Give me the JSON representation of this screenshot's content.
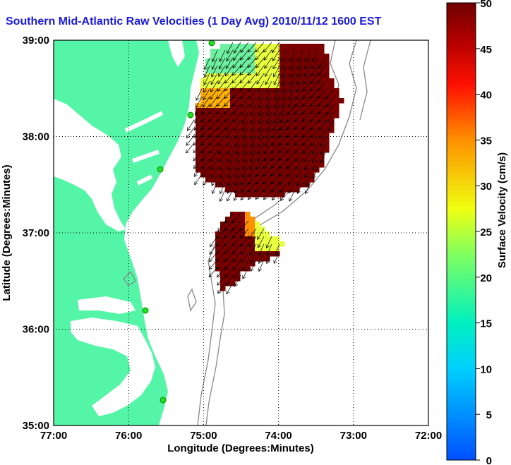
{
  "title": "Southern Mid-Atlantic Raw Velocities (1 Day Avg) 2010/11/12 1600 EST",
  "axes": {
    "xlabel": "Longitude (Degrees:Minutes)",
    "ylabel": "Latitude (Degrees:Minutes)",
    "xticks": [
      "77:00",
      "76:00",
      "75:00",
      "74:00",
      "73:00",
      "72:00"
    ],
    "yticks": [
      "39:00",
      "38:00",
      "37:00",
      "36:00",
      "35:00"
    ]
  },
  "colorbar": {
    "label": "Surface Velocity (cm/s)",
    "ticks": [
      "50",
      "45",
      "40",
      "35",
      "30",
      "25",
      "20",
      "15",
      "10",
      "5",
      "0"
    ],
    "min": 0,
    "max": 50
  },
  "colors": {
    "land": "#55f5a8",
    "water": "#ffffff",
    "title": "#1a1adc",
    "field_main": "#7a0000",
    "site_marker": "#22dd22",
    "bathymetry": "#888888"
  }
}
